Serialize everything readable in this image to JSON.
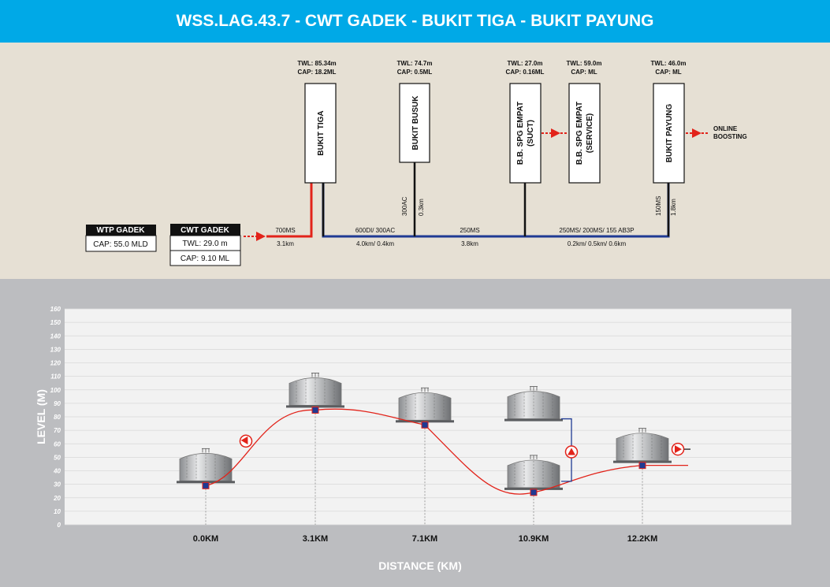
{
  "title": "WSS.LAG.43.7 - CWT GADEK - BUKIT TIGA - BUKIT PAYUNG",
  "wtp": {
    "name": "WTP GADEK",
    "cap": "CAP: 55.0 MLD"
  },
  "cwt": {
    "name": "CWT GADEK",
    "twl": "TWL: 29.0 m",
    "cap": "CAP: 9.10 ML"
  },
  "reservoirs": [
    {
      "name": "BUKIT TIGA",
      "twl": "TWL: 85.34m",
      "cap": "CAP: 18.2ML"
    },
    {
      "name": "BUKIT BUSUK",
      "twl": "TWL: 74.7m",
      "cap": "CAP: 0.5ML"
    },
    {
      "name": "B.B. SPG EMPAT",
      "name2": "(SUCT)",
      "twl": "TWL: 27.0m",
      "cap": "CAP: 0.16ML"
    },
    {
      "name": "B.B. SPG EMPAT",
      "name2": "(SERVICE)",
      "twl": "TWL: 59.0m",
      "cap": "CAP:    ML"
    },
    {
      "name": "BUKIT PAYUNG",
      "twl": "TWL: 46.0m",
      "cap": "CAP:    ML"
    }
  ],
  "online_boosting": [
    "ONLINE",
    "BOOSTING"
  ],
  "pipes": {
    "p1_size": "700MS",
    "p1_len": "3.1km",
    "busuk_size": "300AC",
    "busuk_len": "0.3km",
    "p2_size": "600DI/ 300AC",
    "p2_len": "4.0km/ 0.4km",
    "p3_size": "250MS",
    "p3_len": "3.8km",
    "p4_size": "250MS/ 200MS/ 155 AB3P",
    "p4_len": "0.2km/ 0.5km/ 0.6km",
    "payung_size": "150MS",
    "payung_len": "1.8km"
  },
  "colors": {
    "header": "#00a9e7",
    "pumped_main": "#e2231a",
    "gravity_main": "#1f3a93",
    "marker": "#1f3a93"
  },
  "icons": [
    "pump-icon",
    "reservoir-tank-icon",
    "level-marker-icon"
  ],
  "chart_data": {
    "type": "line",
    "xlabel": "DISTANCE (KM)",
    "ylabel": "LEVEL (M)",
    "ylim": [
      0,
      160
    ],
    "yticks": [
      0,
      10,
      20,
      30,
      40,
      50,
      60,
      70,
      80,
      90,
      100,
      110,
      120,
      130,
      140,
      150,
      160
    ],
    "categories": [
      "0.0KM",
      "3.1KM",
      "7.1KM",
      "10.9KM",
      "12.2KM"
    ],
    "points": [
      {
        "x": "0.0KM",
        "level": 29.0
      },
      {
        "x": "3.1KM",
        "level": 85.0
      },
      {
        "x": "7.1KM",
        "level": 74.0
      },
      {
        "x": "10.9KM",
        "level": 24.0
      },
      {
        "x": "12.2KM",
        "level": 44.0
      }
    ],
    "secondary_tank_level": 75.0,
    "grid": true
  }
}
